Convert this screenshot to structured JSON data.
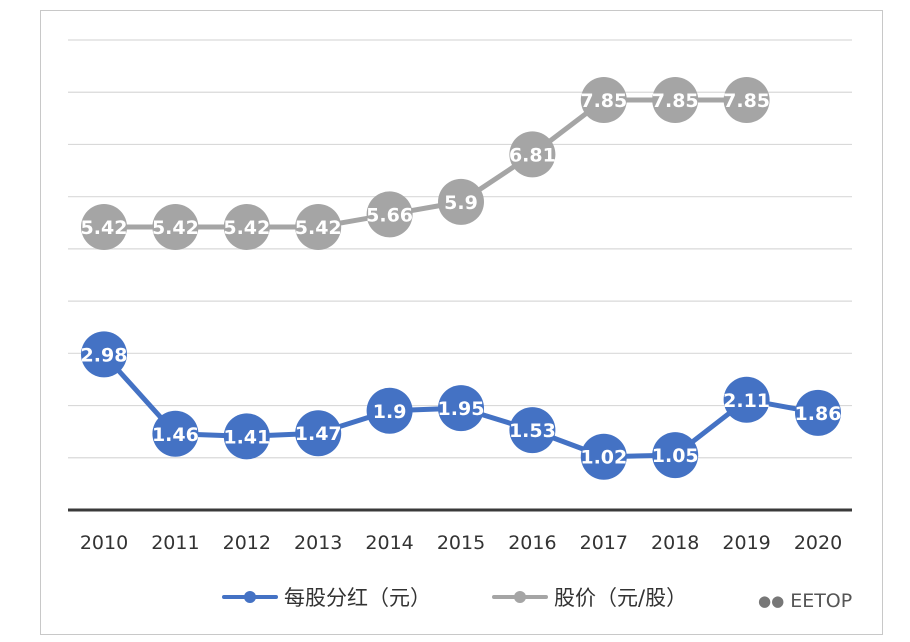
{
  "chart_data": {
    "type": "line",
    "categories": [
      "2010",
      "2011",
      "2012",
      "2013",
      "2014",
      "2015",
      "2016",
      "2017",
      "2018",
      "2019",
      "2020"
    ],
    "series": [
      {
        "name": "每股分红（元）",
        "color": "#4472c4",
        "values": [
          2.98,
          1.46,
          1.41,
          1.47,
          1.9,
          1.95,
          1.53,
          1.02,
          1.05,
          2.11,
          1.86
        ],
        "labels": [
          "2.98",
          "1.46",
          "1.41",
          "1.47",
          "1.9",
          "1.95",
          "1.53",
          "1.02",
          "1.05",
          "2.11",
          "1.86"
        ]
      },
      {
        "name": "股价（元/股）",
        "color": "#a5a5a5",
        "values": [
          5.42,
          5.42,
          5.42,
          5.42,
          5.66,
          5.9,
          6.81,
          7.85,
          7.85,
          7.85,
          null
        ],
        "labels": [
          "5.42",
          "5.42",
          "5.42",
          "5.42",
          "5.66",
          "5.9",
          "6.81",
          "7.85",
          "7.85",
          "7.85",
          ""
        ]
      }
    ],
    "ylim": [
      0,
      9
    ],
    "grid": true,
    "legend_position": "bottom"
  },
  "watermark": {
    "icon": "wechat-icon",
    "text": "EETOP"
  }
}
